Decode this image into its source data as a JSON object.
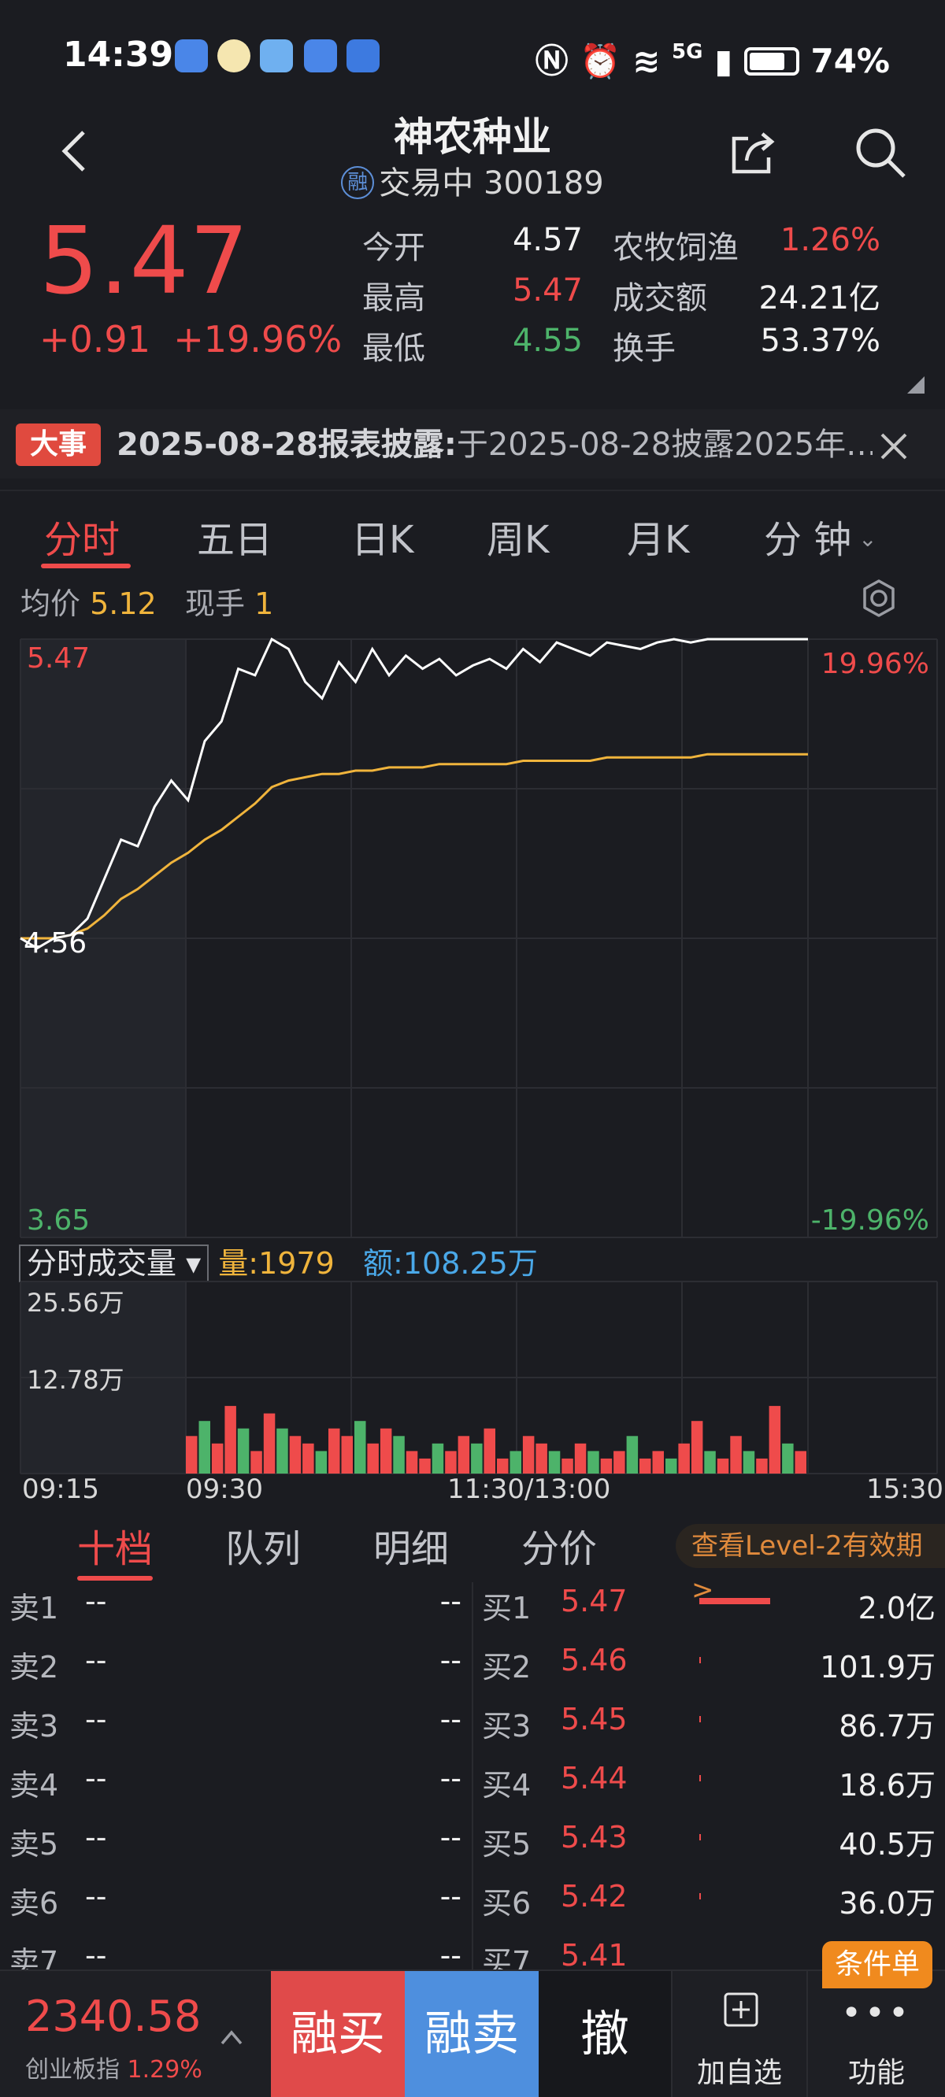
{
  "status_bar": {
    "time": "14:39",
    "network": "5G",
    "battery": "74%"
  },
  "header": {
    "title": "神农种业",
    "badge": "融",
    "status": "交易中",
    "code": "300189"
  },
  "quote": {
    "price": "5.47",
    "change": "+0.91",
    "change_pct": "+19.96%",
    "open_label": "今开",
    "open": "4.57",
    "high_label": "最高",
    "high": "5.47",
    "low_label": "最低",
    "low": "4.55",
    "sector_label": "农牧饲渔",
    "sector_pct": "1.26%",
    "amount_label": "成交额",
    "amount": "24.21亿",
    "turnover_label": "换手",
    "turnover": "53.37%"
  },
  "news": {
    "tag": "大事",
    "headline": "2025-08-28报表披露:",
    "text": "于2025-08-28披露2025年…"
  },
  "chart_tabs": [
    "分时",
    "五日",
    "日K",
    "周K",
    "月K",
    "分 钟"
  ],
  "avg": {
    "avg_label": "均价",
    "avg_value": "5.12",
    "hand_label": "现手",
    "hand_value": "1"
  },
  "chart_data": [
    {
      "type": "line",
      "x": [
        "09:15",
        "09:20",
        "09:25",
        "09:30",
        "09:35",
        "09:40",
        "09:45",
        "09:50",
        "09:55",
        "10:00",
        "10:05",
        "10:10",
        "10:15",
        "10:20",
        "10:25",
        "10:30",
        "10:35",
        "10:40",
        "10:45",
        "10:50",
        "10:55",
        "11:00",
        "11:05",
        "11:10",
        "11:15",
        "11:20",
        "11:25",
        "13:00",
        "13:05",
        "13:10",
        "13:15",
        "13:20",
        "13:25",
        "13:30",
        "13:35",
        "13:40",
        "13:45",
        "13:50",
        "13:55",
        "14:00",
        "14:05",
        "14:10",
        "14:15",
        "14:20",
        "14:25",
        "14:30",
        "14:35",
        "14:39"
      ],
      "series": [
        {
          "values": [
            4.56,
            4.53,
            4.56,
            4.57,
            4.62,
            4.74,
            4.86,
            4.84,
            4.96,
            5.04,
            4.98,
            5.16,
            5.22,
            5.38,
            5.36,
            5.47,
            5.44,
            5.34,
            5.29,
            5.4,
            5.34,
            5.44,
            5.36,
            5.42,
            5.38,
            5.41,
            5.36,
            5.39,
            5.41,
            5.38,
            5.44,
            5.4,
            5.46,
            5.44,
            5.42,
            5.46,
            5.45,
            5.44,
            5.46,
            5.47,
            5.46,
            5.47,
            5.47,
            5.47,
            5.47,
            5.47,
            5.47,
            5.47
          ]
        },
        {
          "values": [
            4.56,
            4.56,
            4.56,
            4.57,
            4.59,
            4.63,
            4.68,
            4.71,
            4.75,
            4.79,
            4.82,
            4.86,
            4.89,
            4.93,
            4.97,
            5.02,
            5.04,
            5.05,
            5.06,
            5.06,
            5.07,
            5.07,
            5.08,
            5.08,
            5.08,
            5.09,
            5.09,
            5.09,
            5.09,
            5.09,
            5.1,
            5.1,
            5.1,
            5.1,
            5.1,
            5.11,
            5.11,
            5.11,
            5.11,
            5.11,
            5.11,
            5.12,
            5.12,
            5.12,
            5.12,
            5.12,
            5.12,
            5.12
          ]
        }
      ],
      "ylim": [
        3.65,
        5.47
      ],
      "y_ticks": [
        "5.47",
        "4.56",
        "3.65"
      ],
      "pct_ticks": [
        "19.96%",
        "-19.96%"
      ],
      "colors": {
        "price": "#ffffff",
        "avg": "#f0b43c"
      }
    },
    {
      "type": "bar",
      "header": {
        "selector": "分时成交量",
        "vol_label": "量:",
        "vol_value": "1979",
        "amt_label": "额:",
        "amt_value": "108.25万"
      },
      "y_ticks": [
        "25.56万",
        "12.78万"
      ],
      "ylim": [
        0,
        25.56
      ],
      "x_labels": [
        "09:15",
        "09:30",
        "11:30/13:00",
        "15:30"
      ],
      "values": [
        5,
        7,
        4,
        9,
        6,
        3,
        8,
        6,
        5,
        4,
        3,
        6,
        5,
        7,
        4,
        6,
        5,
        3,
        2,
        4,
        3,
        5,
        4,
        6,
        2,
        3,
        5,
        4,
        3,
        2,
        4,
        3,
        2,
        3,
        5,
        2,
        3,
        2,
        4,
        7,
        3,
        2,
        5,
        3,
        2,
        9,
        4,
        3
      ],
      "colors_up": "#ef4b4b",
      "colors_down": "#4db36a"
    }
  ],
  "book_tabs": [
    "十档",
    "队列",
    "明细",
    "分价"
  ],
  "level2": "查看Level-2有效期 >",
  "asks": [
    {
      "label": "卖1",
      "price": "--",
      "qty": "--"
    },
    {
      "label": "卖2",
      "price": "--",
      "qty": "--"
    },
    {
      "label": "卖3",
      "price": "--",
      "qty": "--"
    },
    {
      "label": "卖4",
      "price": "--",
      "qty": "--"
    },
    {
      "label": "卖5",
      "price": "--",
      "qty": "--"
    },
    {
      "label": "卖6",
      "price": "--",
      "qty": "--"
    },
    {
      "label": "卖7",
      "price": "--",
      "qty": "--"
    }
  ],
  "bids": [
    {
      "label": "买1",
      "price": "5.47",
      "qty": "2.0亿",
      "share": 1.0
    },
    {
      "label": "买2",
      "price": "5.46",
      "qty": "101.9万",
      "share": 0.005
    },
    {
      "label": "买3",
      "price": "5.45",
      "qty": "86.7万",
      "share": 0.004
    },
    {
      "label": "买4",
      "price": "5.44",
      "qty": "18.6万",
      "share": 0.001
    },
    {
      "label": "买5",
      "price": "5.43",
      "qty": "40.5万",
      "share": 0.002
    },
    {
      "label": "买6",
      "price": "5.42",
      "qty": "36.0万",
      "share": 0.002
    },
    {
      "label": "买7",
      "price": "5.41",
      "qty": "",
      "share": 0
    }
  ],
  "bottom": {
    "index_value": "2340.58",
    "index_name": "创业板指",
    "index_pct": "1.29%",
    "buy": "融买",
    "sell": "融卖",
    "cancel": "撤",
    "watch": "加自选",
    "func": "功能",
    "cond_order": "条件单"
  }
}
